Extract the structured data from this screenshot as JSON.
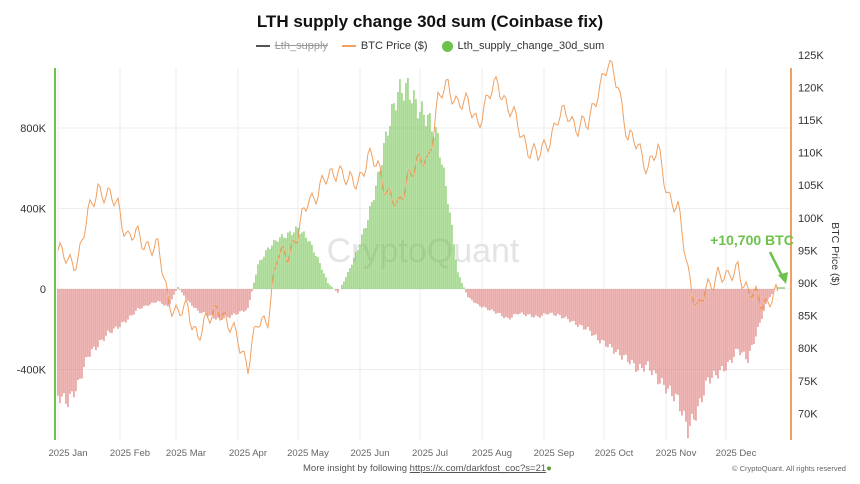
{
  "chart_data": {
    "type": "bar+line",
    "title": "LTH supply change 30d sum (Coinbase fix)",
    "legend": [
      {
        "name": "Lth_supply",
        "color": "#555555",
        "hidden": true
      },
      {
        "name": "BTC Price ($)",
        "color": "#f0a060"
      },
      {
        "name": "Lth_supply_change_30d_sum",
        "color": "#6cc24a"
      }
    ],
    "legend_position": "top-center",
    "colors": {
      "positive": "#6cc24a",
      "negative": "#e07070",
      "price": "#f0a060",
      "left_axis": "#6cc24a",
      "right_axis": "#f0a060"
    },
    "y_left": {
      "ticks": [
        "800K",
        "400K",
        "0",
        "-400K"
      ],
      "tick_values": [
        800,
        400,
        0,
        -400
      ],
      "range": [
        -620,
        1120
      ],
      "unit": "K BTC"
    },
    "y_right": {
      "label": "BTC Price ($)",
      "ticks": [
        "125K",
        "120K",
        "115K",
        "110K",
        "105K",
        "100K",
        "95K",
        "90K",
        "85K",
        "80K",
        "75K",
        "70K"
      ],
      "tick_values": [
        125,
        120,
        115,
        110,
        105,
        100,
        95,
        90,
        85,
        80,
        75,
        70
      ],
      "range": [
        70,
        126.5
      ],
      "unit": "K USD"
    },
    "x_ticks": [
      "2025 Jan",
      "2025 Feb",
      "2025 Mar",
      "2025 Apr",
      "2025 May",
      "2025 Jun",
      "2025 Jul",
      "2025 Aug",
      "2025 Sep",
      "2025 Oct",
      "2025 Nov",
      "2025 Dec"
    ],
    "x_tick_dates": [
      "2025-01-01",
      "2025-02-01",
      "2025-03-01",
      "2025-04-01",
      "2025-05-01",
      "2025-06-01",
      "2025-07-01",
      "2025-08-01",
      "2025-09-01",
      "2025-10-01",
      "2025-11-01",
      "2025-12-01"
    ],
    "grid": true,
    "dates": [
      "2025-01-01",
      "2025-01-06",
      "2025-01-11",
      "2025-01-16",
      "2025-01-21",
      "2025-01-26",
      "2025-01-31",
      "2025-02-05",
      "2025-02-10",
      "2025-02-15",
      "2025-02-20",
      "2025-02-25",
      "2025-03-02",
      "2025-03-07",
      "2025-03-12",
      "2025-03-17",
      "2025-03-22",
      "2025-03-27",
      "2025-04-01",
      "2025-04-06",
      "2025-04-11",
      "2025-04-16",
      "2025-04-21",
      "2025-04-26",
      "2025-05-01",
      "2025-05-06",
      "2025-05-11",
      "2025-05-16",
      "2025-05-21",
      "2025-05-26",
      "2025-05-31",
      "2025-06-05",
      "2025-06-10",
      "2025-06-15",
      "2025-06-20",
      "2025-06-25",
      "2025-06-30",
      "2025-07-05",
      "2025-07-10",
      "2025-07-15",
      "2025-07-20",
      "2025-07-25",
      "2025-07-30",
      "2025-08-04",
      "2025-08-09",
      "2025-08-14",
      "2025-08-19",
      "2025-08-24",
      "2025-08-29",
      "2025-09-03",
      "2025-09-08",
      "2025-09-13",
      "2025-09-18",
      "2025-09-23",
      "2025-09-28",
      "2025-10-03",
      "2025-10-08",
      "2025-10-13",
      "2025-10-18",
      "2025-10-23",
      "2025-10-28",
      "2025-11-02",
      "2025-11-07",
      "2025-11-12",
      "2025-11-17",
      "2025-11-22",
      "2025-11-27",
      "2025-12-02",
      "2025-12-07",
      "2025-12-12",
      "2025-12-17",
      "2025-12-22",
      "2025-12-27"
    ],
    "series": [
      {
        "name": "Lth_supply_change_30d_sum",
        "type": "bar",
        "axis": "left",
        "values": [
          -530,
          -560,
          -480,
          -330,
          -280,
          -220,
          -190,
          -150,
          -100,
          -80,
          -60,
          -90,
          10,
          -60,
          -110,
          -130,
          -150,
          -140,
          -120,
          -100,
          120,
          200,
          250,
          270,
          300,
          250,
          150,
          30,
          -20,
          80,
          200,
          350,
          550,
          800,
          980,
          1000,
          900,
          850,
          750,
          450,
          80,
          -40,
          -80,
          -100,
          -120,
          -150,
          -120,
          -130,
          -140,
          -120,
          -130,
          -150,
          -180,
          -200,
          -250,
          -280,
          -320,
          -350,
          -400,
          -380,
          -450,
          -500,
          -550,
          -700,
          -600,
          -450,
          -420,
          -380,
          -300,
          -350,
          -200,
          -50,
          10
        ]
      },
      {
        "name": "BTC Price ($)",
        "type": "line",
        "axis": "right",
        "values": [
          95,
          93,
          94,
          100,
          105,
          103,
          102,
          97,
          97,
          96,
          95,
          88,
          85,
          86,
          82,
          84,
          87,
          83,
          82,
          77,
          84,
          85,
          94,
          95,
          97,
          103,
          104,
          106,
          108,
          105,
          106,
          109,
          108,
          104,
          101,
          107,
          108,
          109,
          118,
          120,
          118,
          117,
          115,
          118,
          121,
          117,
          114,
          111,
          109,
          112,
          115,
          116,
          114,
          114,
          120,
          123,
          121,
          112,
          111,
          108,
          110,
          104,
          101,
          92,
          86,
          89,
          92,
          90,
          93,
          88,
          88,
          87,
          88
        ]
      }
    ],
    "annotation": {
      "text": "+10,700 BTC",
      "color": "#6cc24a"
    },
    "watermark": "CryptoQuant"
  },
  "footer": {
    "insight_prefix": "More insight by following ",
    "link": "https://x.com/darkfost_coc?s=21",
    "copyright": "© CryptoQuant. All rights reserved"
  }
}
